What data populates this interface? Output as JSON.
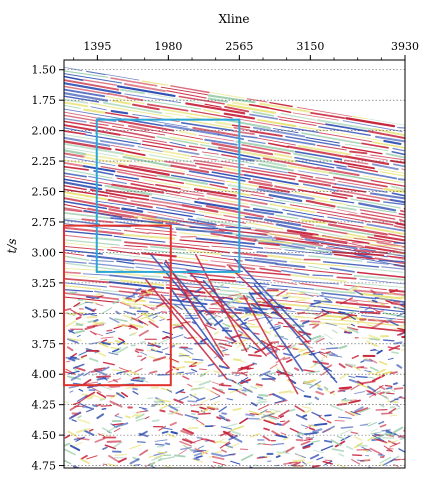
{
  "x_axis": {
    "title": "Xline",
    "ticks": [
      {
        "label": "1395",
        "value": 1395
      },
      {
        "label": "1980",
        "value": 1980
      },
      {
        "label": "2565",
        "value": 2565
      },
      {
        "label": "3150",
        "value": 3150
      },
      {
        "label": "3930",
        "value": 3930
      }
    ],
    "range": [
      1120,
      3930
    ]
  },
  "y_axis": {
    "title": "t/s",
    "ticks": [
      {
        "label": "1.50",
        "value": 1.5
      },
      {
        "label": "1.75",
        "value": 1.75
      },
      {
        "label": "2.00",
        "value": 2.0
      },
      {
        "label": "2.25",
        "value": 2.25
      },
      {
        "label": "2.50",
        "value": 2.5
      },
      {
        "label": "2.75",
        "value": 2.75
      },
      {
        "label": "3.00",
        "value": 3.0
      },
      {
        "label": "3.25",
        "value": 3.25
      },
      {
        "label": "3.50",
        "value": 3.5
      },
      {
        "label": "3.75",
        "value": 3.75
      },
      {
        "label": "4.00",
        "value": 4.0
      },
      {
        "label": "4.25",
        "value": 4.25
      },
      {
        "label": "4.50",
        "value": 4.5
      },
      {
        "label": "4.75",
        "value": 4.75
      }
    ],
    "range": [
      1.42,
      4.77
    ]
  },
  "highlight_boxes": [
    {
      "color": "#2aa7d8",
      "xline": [
        1390,
        2565
      ],
      "t": [
        1.91,
        3.16
      ]
    },
    {
      "color": "#e0312b",
      "xline": [
        1120,
        2000
      ],
      "t": [
        2.78,
        4.09
      ]
    }
  ],
  "colors": {
    "seismic_red": "#c8243c",
    "seismic_blue": "#2f4fb3",
    "seismic_yellow": "#e9e37a",
    "seismic_green": "#9fd0b0",
    "grid": "#555555"
  }
}
